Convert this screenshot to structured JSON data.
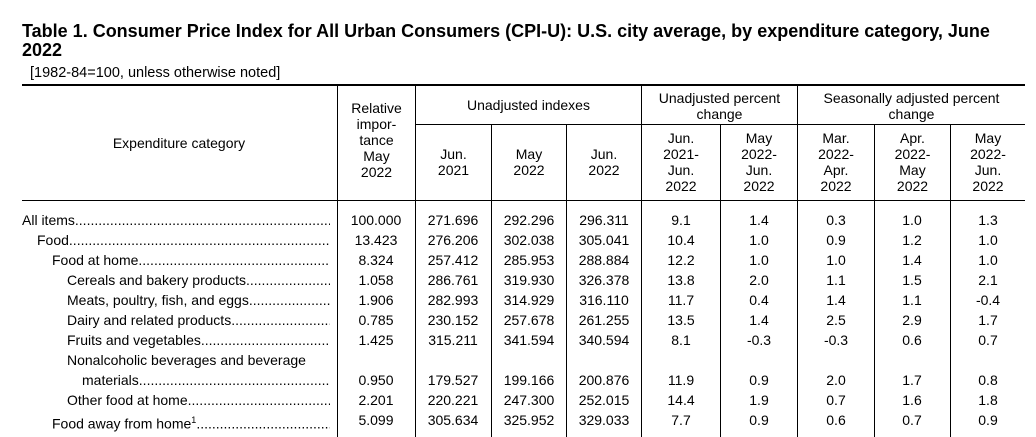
{
  "table": {
    "title": "Table 1. Consumer Price Index for All Urban Consumers (CPI-U): U.S. city average, by expenditure category, June 2022",
    "subtitle": "[1982-84=100, unless otherwise noted]",
    "headers": {
      "category": "Expenditure category",
      "relative_importance": [
        "Relative",
        "impor-",
        "tance",
        "May",
        "2022"
      ],
      "unadjusted_indexes": "Unadjusted indexes",
      "unadjusted_pct": [
        "Unadjusted percent",
        "change"
      ],
      "seasonal_pct": [
        "Seasonally adjusted percent",
        "change"
      ],
      "sub": [
        [
          "Jun.",
          "2021"
        ],
        [
          "May",
          "2022"
        ],
        [
          "Jun.",
          "2022"
        ],
        [
          "Jun.",
          "2021-",
          "Jun.",
          "2022"
        ],
        [
          "May",
          "2022-",
          "Jun.",
          "2022"
        ],
        [
          "Mar.",
          "2022-",
          "Apr.",
          "2022"
        ],
        [
          "Apr.",
          "2022-",
          "May",
          "2022"
        ],
        [
          "May",
          "2022-",
          "Jun.",
          "2022"
        ]
      ]
    },
    "rows": [
      {
        "label": "All items",
        "indent": 0,
        "values": [
          "100.000",
          "271.696",
          "292.296",
          "296.311",
          "9.1",
          "1.4",
          "0.3",
          "1.0",
          "1.3"
        ]
      },
      {
        "label": "Food",
        "indent": 1,
        "values": [
          "13.423",
          "276.206",
          "302.038",
          "305.041",
          "10.4",
          "1.0",
          "0.9",
          "1.2",
          "1.0"
        ]
      },
      {
        "label": "Food at home",
        "indent": 2,
        "values": [
          "8.324",
          "257.412",
          "285.953",
          "288.884",
          "12.2",
          "1.0",
          "1.0",
          "1.4",
          "1.0"
        ]
      },
      {
        "label": "Cereals and bakery products",
        "indent": 3,
        "values": [
          "1.058",
          "286.761",
          "319.930",
          "326.378",
          "13.8",
          "2.0",
          "1.1",
          "1.5",
          "2.1"
        ]
      },
      {
        "label": "Meats, poultry, fish, and eggs",
        "indent": 3,
        "values": [
          "1.906",
          "282.993",
          "314.929",
          "316.110",
          "11.7",
          "0.4",
          "1.4",
          "1.1",
          "-0.4"
        ]
      },
      {
        "label": "Dairy and related products",
        "indent": 3,
        "values": [
          "0.785",
          "230.152",
          "257.678",
          "261.255",
          "13.5",
          "1.4",
          "2.5",
          "2.9",
          "1.7"
        ]
      },
      {
        "label": "Fruits and vegetables",
        "indent": 3,
        "values": [
          "1.425",
          "315.211",
          "341.594",
          "340.594",
          "8.1",
          "-0.3",
          "-0.3",
          "0.6",
          "0.7"
        ]
      },
      {
        "label": "Nonalcoholic beverages and beverage",
        "label2": "materials",
        "indent": 3,
        "values": [
          "0.950",
          "179.527",
          "199.166",
          "200.876",
          "11.9",
          "0.9",
          "2.0",
          "1.7",
          "0.8"
        ]
      },
      {
        "label": "Other food at home",
        "indent": 3,
        "values": [
          "2.201",
          "220.221",
          "247.300",
          "252.015",
          "14.4",
          "1.9",
          "0.7",
          "1.6",
          "1.8"
        ]
      },
      {
        "label": "Food away from home",
        "sup": "1",
        "indent": 2,
        "values": [
          "5.099",
          "305.634",
          "325.952",
          "329.033",
          "7.7",
          "0.9",
          "0.6",
          "0.7",
          "0.9"
        ]
      }
    ]
  }
}
